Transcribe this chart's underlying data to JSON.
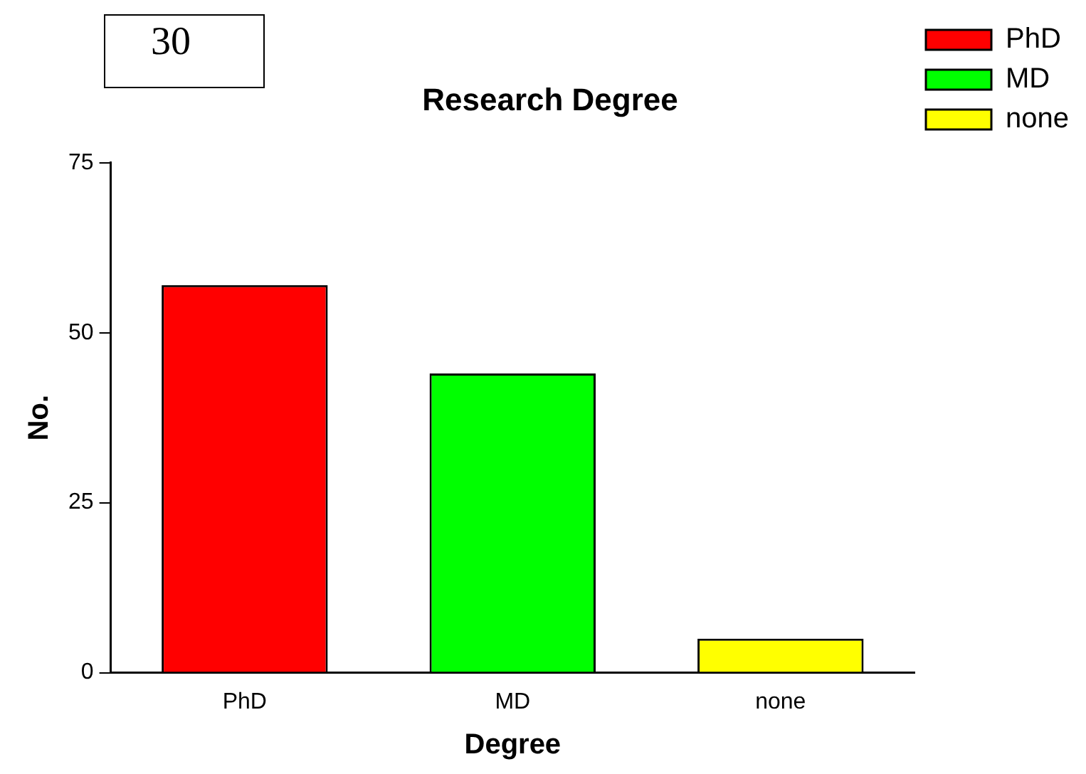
{
  "chart_data": {
    "type": "bar",
    "title": "Research Degree",
    "xlabel": "Degree",
    "ylabel": "No.",
    "categories": [
      "PhD",
      "MD",
      "none"
    ],
    "series": [
      {
        "name": "PhD",
        "color": "#ff0000",
        "values": [
          57,
          null,
          null
        ]
      },
      {
        "name": "MD",
        "color": "#00ff00",
        "values": [
          null,
          44,
          null
        ]
      },
      {
        "name": "none",
        "color": "#ffff00",
        "values": [
          null,
          null,
          5
        ]
      }
    ],
    "ylim": [
      0,
      75
    ],
    "yticks": [
      0,
      25,
      50,
      75
    ],
    "grid": false,
    "legend": "top right",
    "annotations": [
      "30"
    ]
  }
}
